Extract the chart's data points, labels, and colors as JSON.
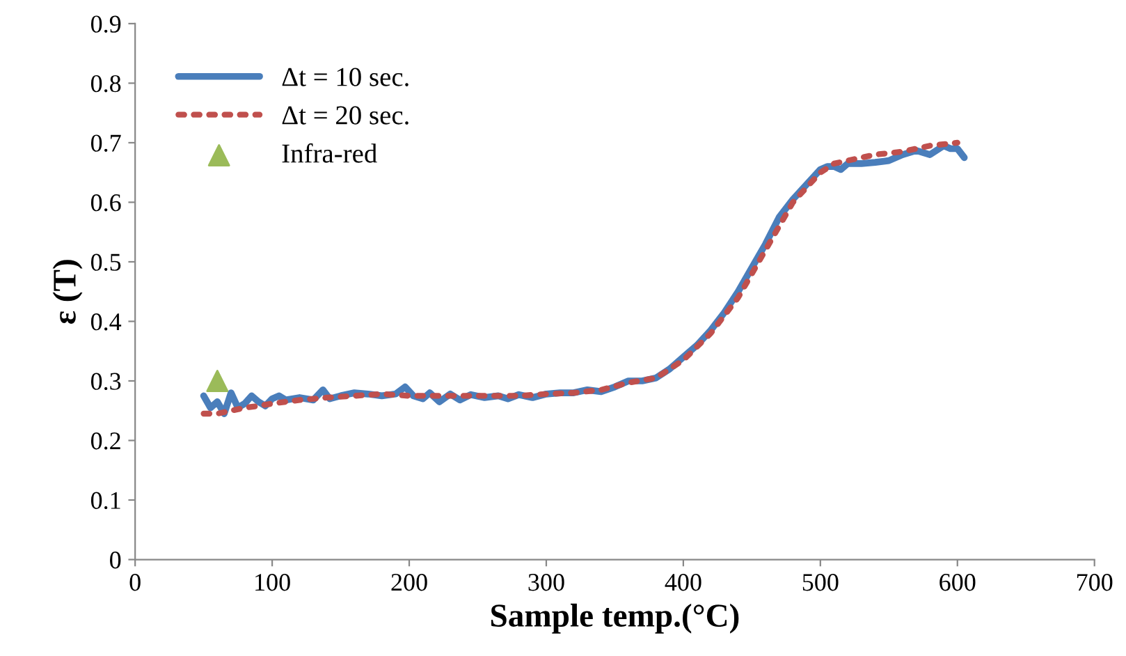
{
  "chart_data": {
    "type": "line",
    "xlabel": "Sample temp.(°C)",
    "ylabel": "ε (T)",
    "xlim": [
      0,
      700
    ],
    "xticks": [
      0,
      100,
      200,
      300,
      400,
      500,
      600,
      700
    ],
    "ylim": [
      0,
      0.9
    ],
    "yticks": [
      0,
      0.1,
      0.2,
      0.3,
      0.4,
      0.5,
      0.6,
      0.7,
      0.8,
      0.9
    ],
    "grid": false,
    "legend": "top left",
    "series": [
      {
        "name": "Δt = 10 sec.",
        "color": "#4a7ebb",
        "line_style": "solid",
        "marker": "none",
        "x": [
          50,
          55,
          60,
          65,
          70,
          75,
          80,
          85,
          90,
          95,
          100,
          105,
          110,
          120,
          130,
          137,
          142,
          150,
          160,
          170,
          180,
          190,
          197,
          203,
          210,
          215,
          222,
          230,
          237,
          245,
          255,
          265,
          272,
          280,
          290,
          300,
          310,
          320,
          330,
          340,
          350,
          360,
          370,
          380,
          390,
          400,
          410,
          420,
          430,
          440,
          450,
          455,
          460,
          470,
          480,
          490,
          500,
          505,
          510,
          515,
          520,
          530,
          540,
          550,
          560,
          570,
          580,
          590,
          595,
          600,
          605
        ],
        "values": [
          0.275,
          0.255,
          0.265,
          0.245,
          0.28,
          0.255,
          0.262,
          0.275,
          0.265,
          0.258,
          0.27,
          0.275,
          0.268,
          0.272,
          0.268,
          0.285,
          0.27,
          0.275,
          0.28,
          0.278,
          0.275,
          0.278,
          0.29,
          0.275,
          0.27,
          0.28,
          0.265,
          0.278,
          0.268,
          0.277,
          0.272,
          0.275,
          0.27,
          0.277,
          0.272,
          0.278,
          0.28,
          0.28,
          0.285,
          0.282,
          0.29,
          0.3,
          0.3,
          0.305,
          0.32,
          0.34,
          0.36,
          0.385,
          0.415,
          0.45,
          0.49,
          0.51,
          0.53,
          0.575,
          0.605,
          0.63,
          0.655,
          0.66,
          0.66,
          0.655,
          0.665,
          0.665,
          0.667,
          0.67,
          0.68,
          0.687,
          0.68,
          0.695,
          0.69,
          0.69,
          0.675
        ]
      },
      {
        "name": "Δt = 20 sec.",
        "color": "#c0504d",
        "line_style": "dotted",
        "marker": "none",
        "x": [
          50,
          60,
          70,
          80,
          90,
          100,
          120,
          140,
          160,
          180,
          200,
          220,
          240,
          260,
          280,
          300,
          320,
          340,
          360,
          380,
          400,
          420,
          440,
          460,
          480,
          500,
          510,
          520,
          530,
          540,
          560,
          580,
          600
        ],
        "values": [
          0.245,
          0.245,
          0.25,
          0.255,
          0.258,
          0.262,
          0.268,
          0.272,
          0.275,
          0.278,
          0.275,
          0.275,
          0.275,
          0.275,
          0.275,
          0.278,
          0.28,
          0.285,
          0.297,
          0.305,
          0.335,
          0.38,
          0.44,
          0.52,
          0.6,
          0.65,
          0.665,
          0.67,
          0.675,
          0.68,
          0.685,
          0.695,
          0.7
        ]
      },
      {
        "name": "Infra-red",
        "type": "scatter",
        "color": "#9bbb59",
        "marker": "triangle",
        "x": [
          60
        ],
        "values": [
          0.3
        ]
      }
    ]
  }
}
